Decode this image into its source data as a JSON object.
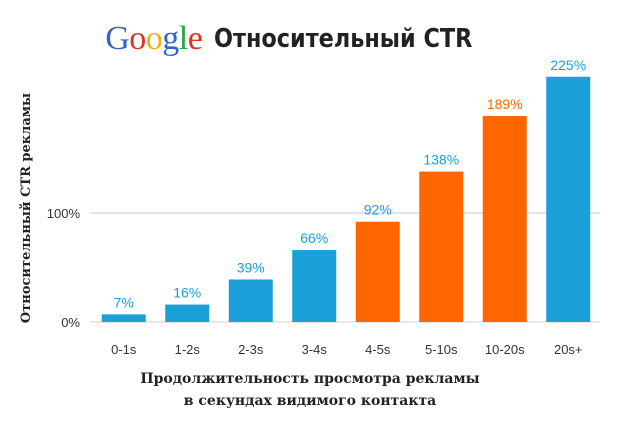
{
  "logo": {
    "letters": [
      {
        "ch": "G",
        "color": "#3366cc"
      },
      {
        "ch": "o",
        "color": "#dd3322"
      },
      {
        "ch": "o",
        "color": "#eeb211"
      },
      {
        "ch": "g",
        "color": "#3366cc"
      },
      {
        "ch": "l",
        "color": "#22aa44"
      },
      {
        "ch": "e",
        "color": "#dd3322"
      }
    ]
  },
  "chart_data": {
    "type": "bar",
    "title": "Относительный CTR",
    "ylabel": "Относительный CTR рекламы",
    "xlabel_lines": [
      "Продолжительность просмотра рекламы",
      "в секундах видимого контакта"
    ],
    "categories": [
      "0-1s",
      "1-2s",
      "2-3s",
      "3-4s",
      "4-5s",
      "5-10s",
      "10-20s",
      "20s+"
    ],
    "values": [
      7,
      16,
      39,
      66,
      92,
      138,
      189,
      225
    ],
    "value_labels": [
      "7%",
      "16%",
      "39%",
      "66%",
      "92%",
      "138%",
      "189%",
      "225%"
    ],
    "bar_colors": [
      "#1a9fd9",
      "#1a9fd9",
      "#1a9fd9",
      "#1a9fd9",
      "#ff6600",
      "#ff6600",
      "#ff6600",
      "#1a9fd9"
    ],
    "label_colors": [
      "#1a9fd9",
      "#1a9fd9",
      "#1a9fd9",
      "#1a9fd9",
      "#1a9fd9",
      "#1a9fd9",
      "#ff6600",
      "#1a9fd9"
    ],
    "yticks": [
      {
        "value": 0,
        "label": "0%"
      },
      {
        "value": 100,
        "label": "100%"
      }
    ],
    "ylim": [
      0,
      225
    ],
    "grid": "100% reference line only"
  }
}
